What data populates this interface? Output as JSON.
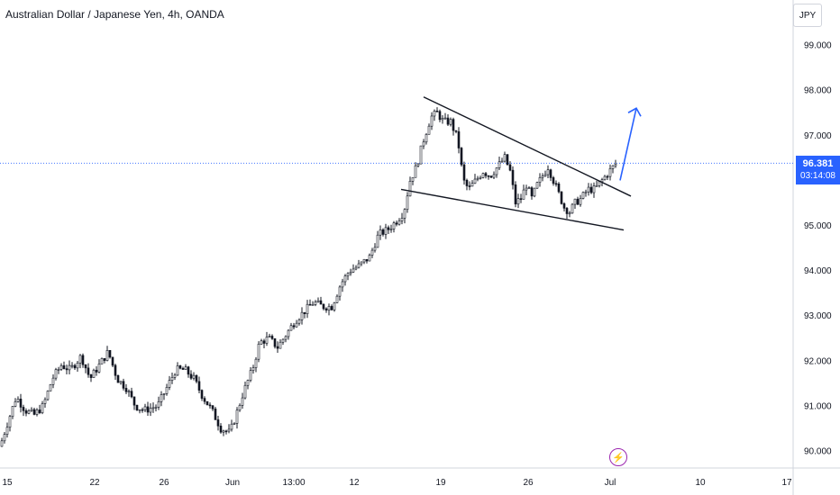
{
  "header": {
    "title": "Australian Dollar / Japanese Yen, 4h, OANDA"
  },
  "currency": "JPY",
  "last_price": {
    "value": "96.381",
    "countdown": "03:14:08"
  },
  "colors": {
    "candle": "#131722",
    "accent": "#2962ff",
    "grid_line": "#2962ff",
    "border": "#d1d4dc",
    "flash": "#9c27b0"
  },
  "icons": {
    "flash": "flash-icon"
  },
  "chart_data": {
    "type": "candlestick",
    "title": "Australian Dollar / Japanese Yen, 4h, OANDA",
    "ylim": [
      89.7,
      99.9
    ],
    "y_ticks": [
      "99.000",
      "98.000",
      "97.000",
      "96.000",
      "95.000",
      "94.000",
      "93.000",
      "92.000",
      "91.000",
      "90.000"
    ],
    "x_ticks": [
      "15",
      "22",
      "26",
      "Jun",
      "13:00",
      "12",
      "19",
      "26",
      "Jul",
      "10",
      "17"
    ],
    "price_path": [
      [
        0,
        90.1
      ],
      [
        8,
        90.6
      ],
      [
        18,
        91.2
      ],
      [
        28,
        90.9
      ],
      [
        38,
        90.8
      ],
      [
        48,
        91.0
      ],
      [
        58,
        91.6
      ],
      [
        68,
        91.9
      ],
      [
        78,
        91.8
      ],
      [
        90,
        92.1
      ],
      [
        100,
        91.6
      ],
      [
        110,
        91.9
      ],
      [
        120,
        92.2
      ],
      [
        130,
        91.6
      ],
      [
        140,
        91.4
      ],
      [
        150,
        91.0
      ],
      [
        160,
        90.9
      ],
      [
        175,
        91.0
      ],
      [
        185,
        91.4
      ],
      [
        195,
        91.8
      ],
      [
        205,
        91.8
      ],
      [
        215,
        91.6
      ],
      [
        225,
        91.2
      ],
      [
        235,
        90.9
      ],
      [
        245,
        90.5
      ],
      [
        255,
        90.4
      ],
      [
        262,
        90.8
      ],
      [
        270,
        91.3
      ],
      [
        280,
        91.8
      ],
      [
        288,
        92.4
      ],
      [
        298,
        92.5
      ],
      [
        308,
        92.3
      ],
      [
        318,
        92.6
      ],
      [
        328,
        92.9
      ],
      [
        338,
        93.1
      ],
      [
        348,
        93.3
      ],
      [
        358,
        93.2
      ],
      [
        368,
        93.2
      ],
      [
        378,
        93.7
      ],
      [
        388,
        94.0
      ],
      [
        398,
        94.1
      ],
      [
        410,
        94.3
      ],
      [
        420,
        94.8
      ],
      [
        430,
        94.9
      ],
      [
        440,
        95.1
      ],
      [
        448,
        95.3
      ],
      [
        455,
        96.0
      ],
      [
        462,
        96.3
      ],
      [
        470,
        96.9
      ],
      [
        478,
        97.4
      ],
      [
        485,
        97.5
      ],
      [
        492,
        97.3
      ],
      [
        500,
        97.3
      ],
      [
        508,
        96.9
      ],
      [
        514,
        96.0
      ],
      [
        520,
        95.8
      ],
      [
        528,
        96.0
      ],
      [
        536,
        96.2
      ],
      [
        544,
        96.1
      ],
      [
        552,
        96.3
      ],
      [
        560,
        96.5
      ],
      [
        566,
        96.2
      ],
      [
        572,
        95.5
      ],
      [
        578,
        95.6
      ],
      [
        584,
        95.9
      ],
      [
        590,
        95.6
      ],
      [
        596,
        95.9
      ],
      [
        602,
        96.1
      ],
      [
        608,
        96.3
      ],
      [
        614,
        96.0
      ],
      [
        620,
        95.7
      ],
      [
        626,
        95.4
      ],
      [
        632,
        95.3
      ],
      [
        638,
        95.5
      ],
      [
        645,
        95.6
      ],
      [
        652,
        95.8
      ],
      [
        660,
        95.8
      ],
      [
        668,
        96.0
      ],
      [
        676,
        96.2
      ],
      [
        684,
        96.38
      ]
    ],
    "drawings": {
      "triangle_upper": [
        [
          470,
          97.85
        ],
        [
          700,
          95.65
        ]
      ],
      "triangle_lower": [
        [
          445,
          95.8
        ],
        [
          692,
          94.9
        ]
      ],
      "arrow": [
        [
          688,
          96.0
        ],
        [
          706,
          97.6
        ]
      ]
    }
  }
}
